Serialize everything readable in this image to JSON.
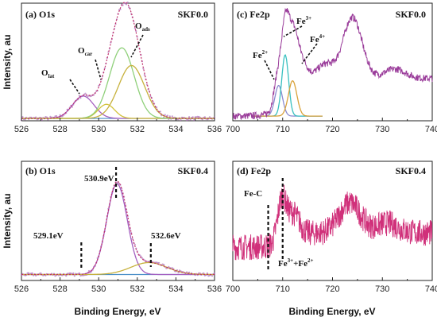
{
  "figure": {
    "xlabel_bottom": "Binding Energy, eV",
    "ylabel_left": "Intensity, au"
  },
  "chart_data": [
    {
      "id": "a",
      "type": "line",
      "panel_label": "(a)",
      "title": "O1s",
      "sample": "SKF0.0",
      "xlim": [
        526,
        536
      ],
      "xticks": [
        "526",
        "528",
        "530",
        "532",
        "534",
        "536"
      ],
      "ylabel": "Intensity, au",
      "peaks": [
        {
          "label_main": "O",
          "label_sub": "lat",
          "center_eV": 529.2,
          "height": 0.19,
          "fwhm": 1.3,
          "color": "#a45fc0"
        },
        {
          "label_main": "O",
          "label_sub": "car",
          "center_eV": 530.4,
          "height": 0.12,
          "fwhm": 1.0,
          "color": "#d2c23a"
        },
        {
          "label_main": "O",
          "label_sub": "ads",
          "center_eV": 531.2,
          "height": 0.6,
          "fwhm": 1.5,
          "color": "#8fd07a"
        },
        {
          "label_main": "",
          "label_sub": "",
          "center_eV": 531.7,
          "height": 0.45,
          "fwhm": 1.6,
          "color": "#c7b13c"
        }
      ],
      "envelope_color": "#c0306a",
      "raw_color": "#b37abf",
      "background_color": "#4a8fc8"
    },
    {
      "id": "b",
      "type": "line",
      "panel_label": "(b)",
      "title": "O1s",
      "sample": "SKF0.4",
      "xlim": [
        526,
        536
      ],
      "xticks": [
        "526",
        "528",
        "530",
        "532",
        "534",
        "536"
      ],
      "ylabel": "Intensity, au",
      "xlabel": "Binding Energy, eV",
      "peaks": [
        {
          "center_eV": 530.95,
          "height": 0.76,
          "fwhm": 1.25,
          "color": "#a45fc0"
        },
        {
          "center_eV": 532.6,
          "height": 0.1,
          "fwhm": 2.2,
          "color": "#c7b13c"
        }
      ],
      "annotations": [
        {
          "text": "530.9eV",
          "x_eV": 530.9
        },
        {
          "text": "529.1eV",
          "x_eV": 529.1
        },
        {
          "text": "532.6eV",
          "x_eV": 532.6
        }
      ],
      "envelope_color": "#c0306a",
      "raw_color": "#b37abf",
      "background_color": "#4a8fc8"
    },
    {
      "id": "c",
      "type": "line",
      "panel_label": "(c)",
      "title": "Fe2p",
      "sample": "SKF0.0",
      "xlim": [
        700,
        740
      ],
      "xticks": [
        "700",
        "710",
        "720",
        "730",
        "740"
      ],
      "features": [
        {
          "center_eV": 709.0,
          "height": 0.26,
          "fwhm": 1.8
        },
        {
          "center_eV": 710.5,
          "height": 0.58,
          "fwhm": 1.8
        },
        {
          "center_eV": 712.0,
          "height": 0.4,
          "fwhm": 2.2
        },
        {
          "center_eV": 713.5,
          "height": 0.2,
          "fwhm": 3.0
        },
        {
          "center_eV": 718.5,
          "height": 0.12,
          "fwhm": 4.0
        },
        {
          "center_eV": 724.0,
          "height": 0.52,
          "fwhm": 4.5
        },
        {
          "center_eV": 732.5,
          "height": 0.08,
          "fwhm": 5.0
        }
      ],
      "fit_peaks": [
        {
          "label_main": "Fe",
          "label_sup": "2+",
          "center_eV": 709.2,
          "height": 0.26,
          "fwhm": 1.8,
          "color": "#8a8ad0"
        },
        {
          "label_main": "Fe",
          "label_sup": "3+",
          "center_eV": 710.5,
          "height": 0.52,
          "fwhm": 1.6,
          "color": "#39c0c0"
        },
        {
          "label_main": "Fe",
          "label_sup": "4+",
          "center_eV": 712.0,
          "height": 0.3,
          "fwhm": 2.0,
          "color": "#d9a23a"
        }
      ],
      "line_color": "#9a3c9a"
    },
    {
      "id": "d",
      "type": "line",
      "panel_label": "(d)",
      "title": "Fe2p",
      "sample": "SKF0.4",
      "xlim": [
        700,
        740
      ],
      "xticks": [
        "700",
        "710",
        "720",
        "730",
        "740"
      ],
      "xlabel": "Binding Energy, eV",
      "features": [
        {
          "center_eV": 709.8,
          "height": 0.34,
          "fwhm": 2.0
        },
        {
          "center_eV": 712.0,
          "height": 0.2,
          "fwhm": 3.0
        },
        {
          "center_eV": 723.5,
          "height": 0.25,
          "fwhm": 5.0
        },
        {
          "center_eV": 731.0,
          "height": 0.08,
          "fwhm": 5.0
        }
      ],
      "annotations": [
        {
          "text": "Fe-C",
          "x_eV": 707.0
        },
        {
          "text": "Fe",
          "sup": "3+",
          "text2": "+Fe",
          "sup2": "2+",
          "x_eV": 710.0
        }
      ],
      "line_color": "#d0307a"
    }
  ]
}
